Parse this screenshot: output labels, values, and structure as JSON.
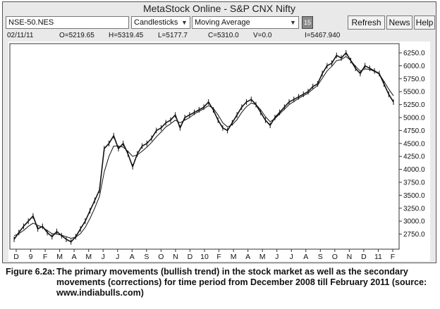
{
  "window": {
    "title": "MetaStock Online - S&P CNX Nifty"
  },
  "toolbar": {
    "symbol": "NSE-50.NES",
    "chart_type": "Candlesticks",
    "indicator": "Moving Average",
    "period": "15",
    "refresh_label": "Refresh",
    "news_label": "News",
    "help_label": "Help"
  },
  "quote": {
    "date": "02/11/11",
    "open": "O=5219.65",
    "high": "H=5319.45",
    "low": "L=5177.7",
    "close": "C=5310.0",
    "volume": "V=0.0",
    "indicator": "I=5467.940"
  },
  "chart_data": {
    "type": "line",
    "title": "",
    "xlabel": "",
    "ylabel": "",
    "ylim": [
      2500,
      6400
    ],
    "x_ticks": [
      "D",
      "9",
      "F",
      "M",
      "A",
      "M",
      "J",
      "J",
      "A",
      "S",
      "O",
      "N",
      "D",
      "10",
      "F",
      "M",
      "A",
      "M",
      "J",
      "J",
      "A",
      "S",
      "O",
      "N",
      "D",
      "11",
      "F"
    ],
    "y_ticks": [
      "6250.0",
      "6000.0",
      "5750.0",
      "5500.0",
      "5250.0",
      "5000.0",
      "4750.0",
      "4500.0",
      "4250.0",
      "4000.0",
      "3750.0",
      "3500.0",
      "3250.0",
      "3000.0",
      "2750.0"
    ],
    "grid": false,
    "series": [
      {
        "values": [
          2650,
          2780,
          2900,
          3000,
          3100,
          2850,
          2900,
          2780,
          2700,
          2800,
          2720,
          2650,
          2600,
          2700,
          2850,
          3000,
          3200,
          3400,
          3600,
          4400,
          4500,
          4650,
          4400,
          4500,
          4300,
          4050,
          4300,
          4450,
          4500,
          4600,
          4750,
          4800,
          4900,
          4950,
          5050,
          4800,
          5000,
          5050,
          5100,
          5150,
          5200,
          5300,
          5150,
          4950,
          4800,
          4750,
          4900,
          5050,
          5200,
          5300,
          5350,
          5250,
          5100,
          4950,
          4850,
          5000,
          5100,
          5200,
          5300,
          5350,
          5400,
          5450,
          5500,
          5600,
          5650,
          5850,
          6000,
          6050,
          6200,
          6150,
          6250,
          6100,
          5950,
          5850,
          6000,
          5950,
          5900,
          5850,
          5650,
          5450,
          5300
        ]
      },
      {
        "name": "Moving Average",
        "values": [
          2720,
          2760,
          2820,
          2900,
          2960,
          2920,
          2880,
          2820,
          2760,
          2750,
          2730,
          2700,
          2670,
          2690,
          2760,
          2880,
          3050,
          3250,
          3480,
          3950,
          4250,
          4450,
          4450,
          4430,
          4350,
          4250,
          4280,
          4350,
          4430,
          4520,
          4630,
          4720,
          4820,
          4880,
          4950,
          4900,
          4950,
          5000,
          5070,
          5120,
          5170,
          5230,
          5180,
          5050,
          4900,
          4820,
          4860,
          4960,
          5100,
          5210,
          5280,
          5250,
          5150,
          5020,
          4920,
          4980,
          5070,
          5160,
          5250,
          5310,
          5370,
          5420,
          5470,
          5550,
          5620,
          5760,
          5900,
          5990,
          6100,
          6120,
          6180,
          6100,
          5990,
          5900,
          5940,
          5930,
          5890,
          5840,
          5700,
          5550,
          5420
        ]
      }
    ]
  },
  "caption": {
    "label": "Figure 6.2a:",
    "text": "The primary movements (bullish trend) in the stock market as well as the secondary movements (corrections) for time period from December 2008 till February 2011 (source: www.indiabulls.com)"
  },
  "colors": {
    "background": "#ffffff",
    "window": "#e9e9e9",
    "price_line": "#111111"
  }
}
